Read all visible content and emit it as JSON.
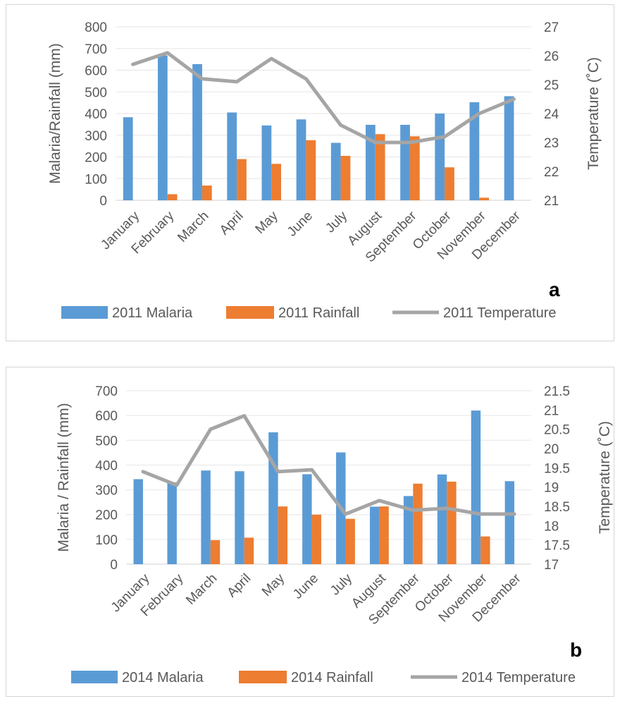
{
  "chart_data": [
    {
      "type": "bar",
      "panel_label": "a",
      "categories": [
        "January",
        "February",
        "March",
        "April",
        "May",
        "June",
        "July",
        "August",
        "September",
        "October",
        "November",
        "December"
      ],
      "series": [
        {
          "name": "2011 Malaria",
          "type": "bar",
          "axis": "left",
          "color": "#5b9bd5",
          "values": [
            383,
            668,
            628,
            405,
            345,
            373,
            265,
            348,
            348,
            400,
            452,
            480
          ]
        },
        {
          "name": "2011 Rainfall",
          "type": "bar",
          "axis": "left",
          "color": "#ed7d31",
          "values": [
            0,
            28,
            68,
            190,
            168,
            277,
            205,
            305,
            295,
            152,
            12,
            0
          ]
        },
        {
          "name": "2011 Temperature",
          "type": "line",
          "axis": "right",
          "color": "#a5a5a5",
          "values": [
            25.7,
            26.1,
            25.2,
            25.1,
            25.9,
            25.2,
            23.6,
            23.0,
            23.0,
            23.2,
            24.0,
            24.5
          ]
        }
      ],
      "ylabel": "Malaria/Rainfall (mm)",
      "y2label": "Temperature (˚C)",
      "ylim": [
        0,
        800
      ],
      "y2lim": [
        21,
        27
      ],
      "yticks": [
        "0",
        "100",
        "200",
        "300",
        "400",
        "500",
        "600",
        "700",
        "800"
      ],
      "y2ticks": [
        "21",
        "22",
        "23",
        "24",
        "25",
        "26",
        "27"
      ],
      "grid": true,
      "legend": "bottom"
    },
    {
      "type": "bar",
      "panel_label": "b",
      "categories": [
        "January",
        "February",
        "March",
        "April",
        "May",
        "June",
        "July",
        "August",
        "September",
        "October",
        "November",
        "December"
      ],
      "series": [
        {
          "name": "2014 Malaria",
          "type": "bar",
          "axis": "left",
          "color": "#5b9bd5",
          "values": [
            343,
            330,
            378,
            375,
            532,
            363,
            451,
            232,
            275,
            362,
            620,
            335
          ]
        },
        {
          "name": "2014 Rainfall",
          "type": "bar",
          "axis": "left",
          "color": "#ed7d31",
          "values": [
            0,
            0,
            97,
            107,
            233,
            200,
            183,
            233,
            325,
            333,
            112,
            0
          ]
        },
        {
          "name": "2014 Temperature",
          "type": "line",
          "axis": "right",
          "color": "#a5a5a5",
          "values": [
            19.4,
            19.05,
            20.5,
            20.85,
            19.4,
            19.45,
            18.3,
            18.65,
            18.4,
            18.45,
            18.3,
            18.3
          ]
        }
      ],
      "ylabel": "Malaria / Rainfall (mm)",
      "y2label": "Temperature (˚C)",
      "ylim": [
        0,
        700
      ],
      "y2lim": [
        17,
        21.5
      ],
      "yticks": [
        "0",
        "100",
        "200",
        "300",
        "400",
        "500",
        "600",
        "700"
      ],
      "y2ticks": [
        "17",
        "17.5",
        "18",
        "18.5",
        "19",
        "19.5",
        "20",
        "20.5",
        "21",
        "21.5"
      ],
      "grid": true,
      "legend": "bottom"
    }
  ]
}
